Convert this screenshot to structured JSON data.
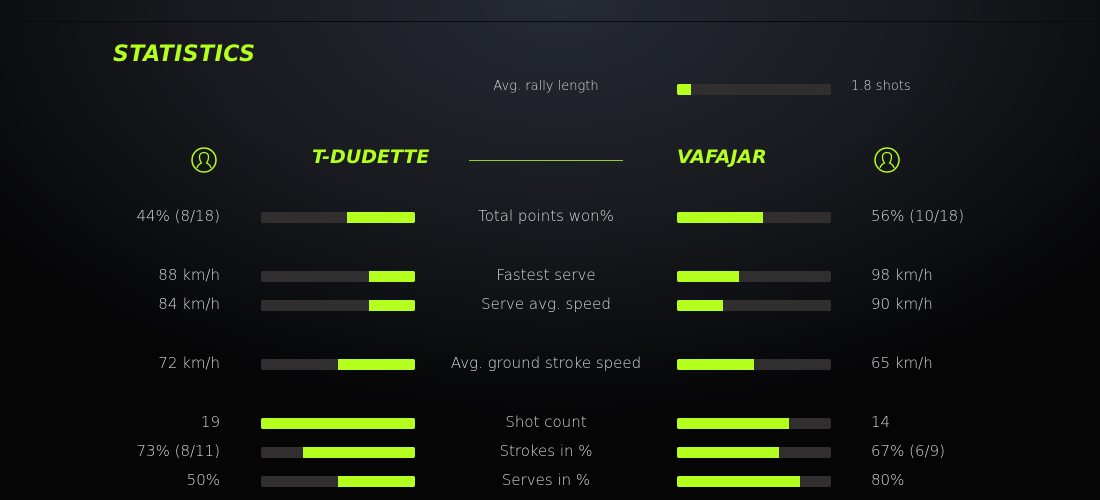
{
  "title": "STATISTICS",
  "accent": "#b4ff1e",
  "rally": {
    "label": "Avg. rally length",
    "value": "1.8 shots",
    "fill": 0.09
  },
  "players": {
    "left": {
      "name": "T-DUDETTE",
      "icon": "user-circle-icon"
    },
    "right": {
      "name": "VAFAJAR",
      "icon": "user-circle-icon"
    }
  },
  "rows": [
    {
      "label": "Total points won%",
      "left": "44% (8/18)",
      "right": "56% (10/18)",
      "left_fill": 0.44,
      "right_fill": 0.56
    },
    {
      "label": "Fastest serve",
      "left": "88 km/h",
      "right": "98 km/h",
      "left_fill": 0.3,
      "right_fill": 0.4
    },
    {
      "label": "Serve avg. speed",
      "left": "84 km/h",
      "right": "90 km/h",
      "left_fill": 0.3,
      "right_fill": 0.3
    },
    {
      "label": "Avg. ground stroke speed",
      "left": "72 km/h",
      "right": "65 km/h",
      "left_fill": 0.5,
      "right_fill": 0.5
    },
    {
      "label": "Shot count",
      "left": "19",
      "right": "14",
      "left_fill": 1.0,
      "right_fill": 0.73
    },
    {
      "label": "Strokes in %",
      "left": "73% (8/11)",
      "right": "67% (6/9)",
      "left_fill": 0.73,
      "right_fill": 0.66
    },
    {
      "label": "Serves in %",
      "left": "50%",
      "right": "80%",
      "left_fill": 0.5,
      "right_fill": 0.8
    }
  ]
}
